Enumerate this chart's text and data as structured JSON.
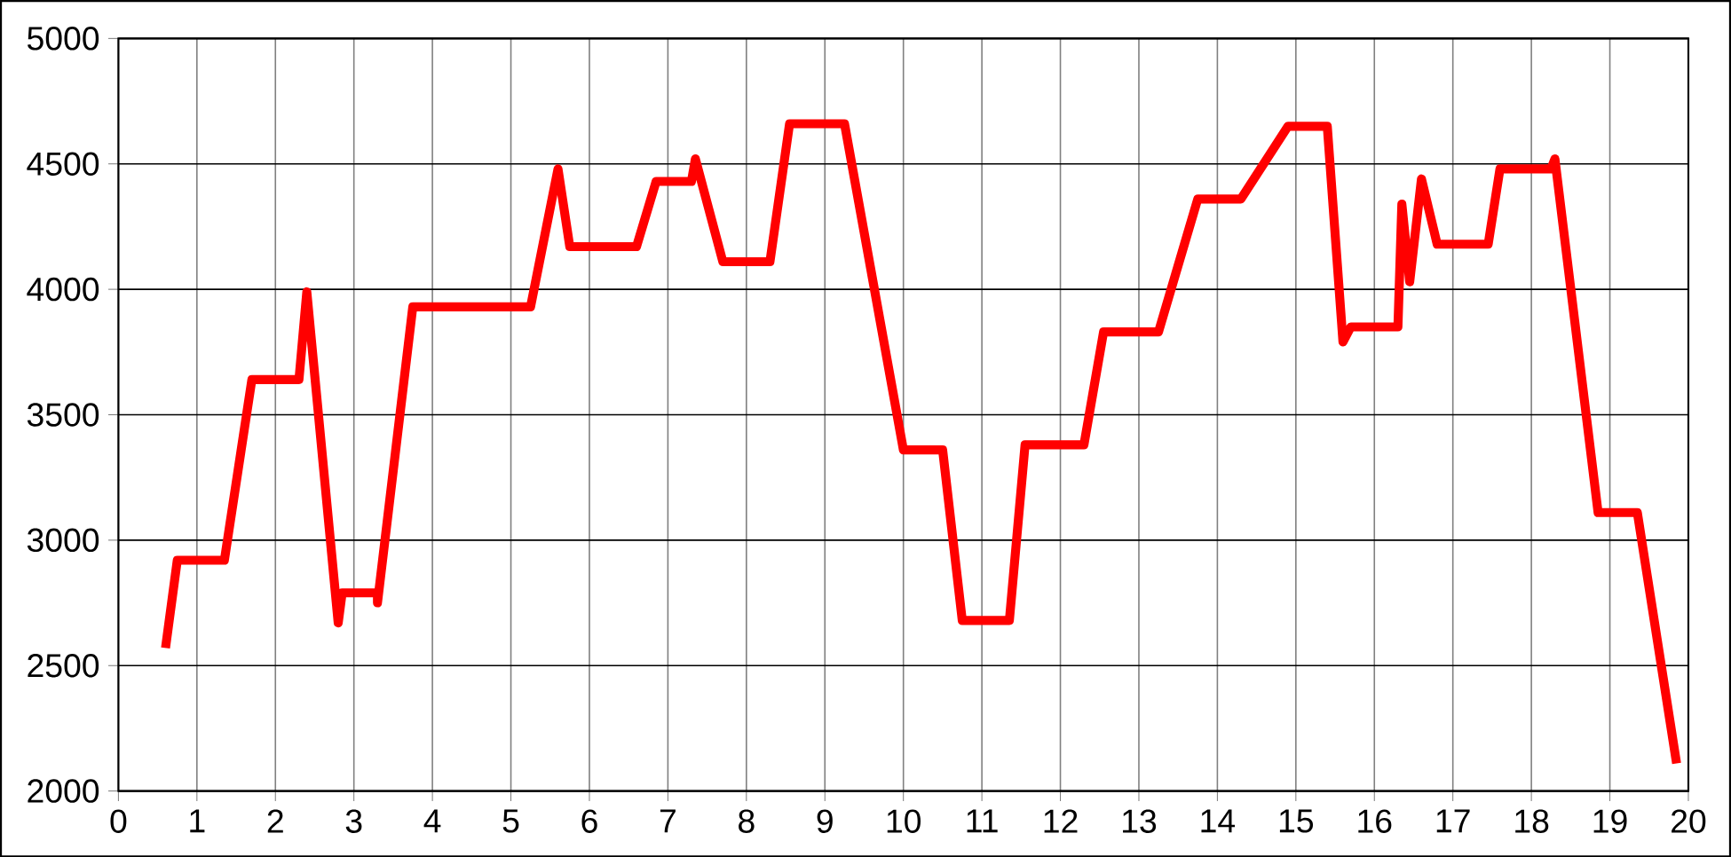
{
  "chart_data": {
    "type": "line",
    "x": [
      0.6,
      0.75,
      1.35,
      1.7,
      2.3,
      2.4,
      2.8,
      2.85,
      3.3,
      3.3,
      3.75,
      5.25,
      5.6,
      5.75,
      6.6,
      6.85,
      7.3,
      7.35,
      7.7,
      8.3,
      8.55,
      9.25,
      10.0,
      10.5,
      10.75,
      11.35,
      11.55,
      12.3,
      12.55,
      13.25,
      13.75,
      14.3,
      14.9,
      15.4,
      15.6,
      15.7,
      16.3,
      16.35,
      16.45,
      16.6,
      16.8,
      17.45,
      17.6,
      18.25,
      18.3,
      18.85,
      19.35,
      19.85
    ],
    "series": [
      {
        "color": "#ff0000",
        "values": [
          2570,
          2920,
          2920,
          3640,
          3640,
          3990,
          2670,
          2790,
          2790,
          2750,
          3930,
          3930,
          4480,
          4170,
          4170,
          4430,
          4430,
          4520,
          4110,
          4110,
          4660,
          4660,
          3360,
          3360,
          2680,
          2680,
          3380,
          3380,
          3830,
          3830,
          4360,
          4360,
          4650,
          4650,
          3790,
          3850,
          3850,
          4340,
          4030,
          4440,
          4180,
          4180,
          4480,
          4480,
          4520,
          3110,
          3110,
          2110
        ]
      }
    ],
    "xlim": [
      0,
      20
    ],
    "ylim": [
      2000,
      5000
    ],
    "xticks": [
      0,
      1,
      2,
      3,
      4,
      5,
      6,
      7,
      8,
      9,
      10,
      11,
      12,
      13,
      14,
      15,
      16,
      17,
      18,
      19,
      20
    ],
    "yticks": [
      2000,
      2500,
      3000,
      3500,
      4000,
      4500,
      5000
    ],
    "grid": true,
    "line_style": "solid"
  }
}
